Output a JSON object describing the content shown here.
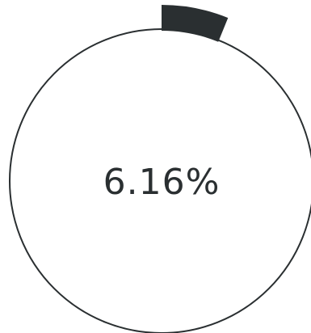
{
  "progress_ring": {
    "percent_label": "6.16%",
    "value_percent": 6.16,
    "colors": {
      "track": "#2a2f31",
      "fill": "#2a2f31",
      "background": "#ffffff"
    }
  }
}
